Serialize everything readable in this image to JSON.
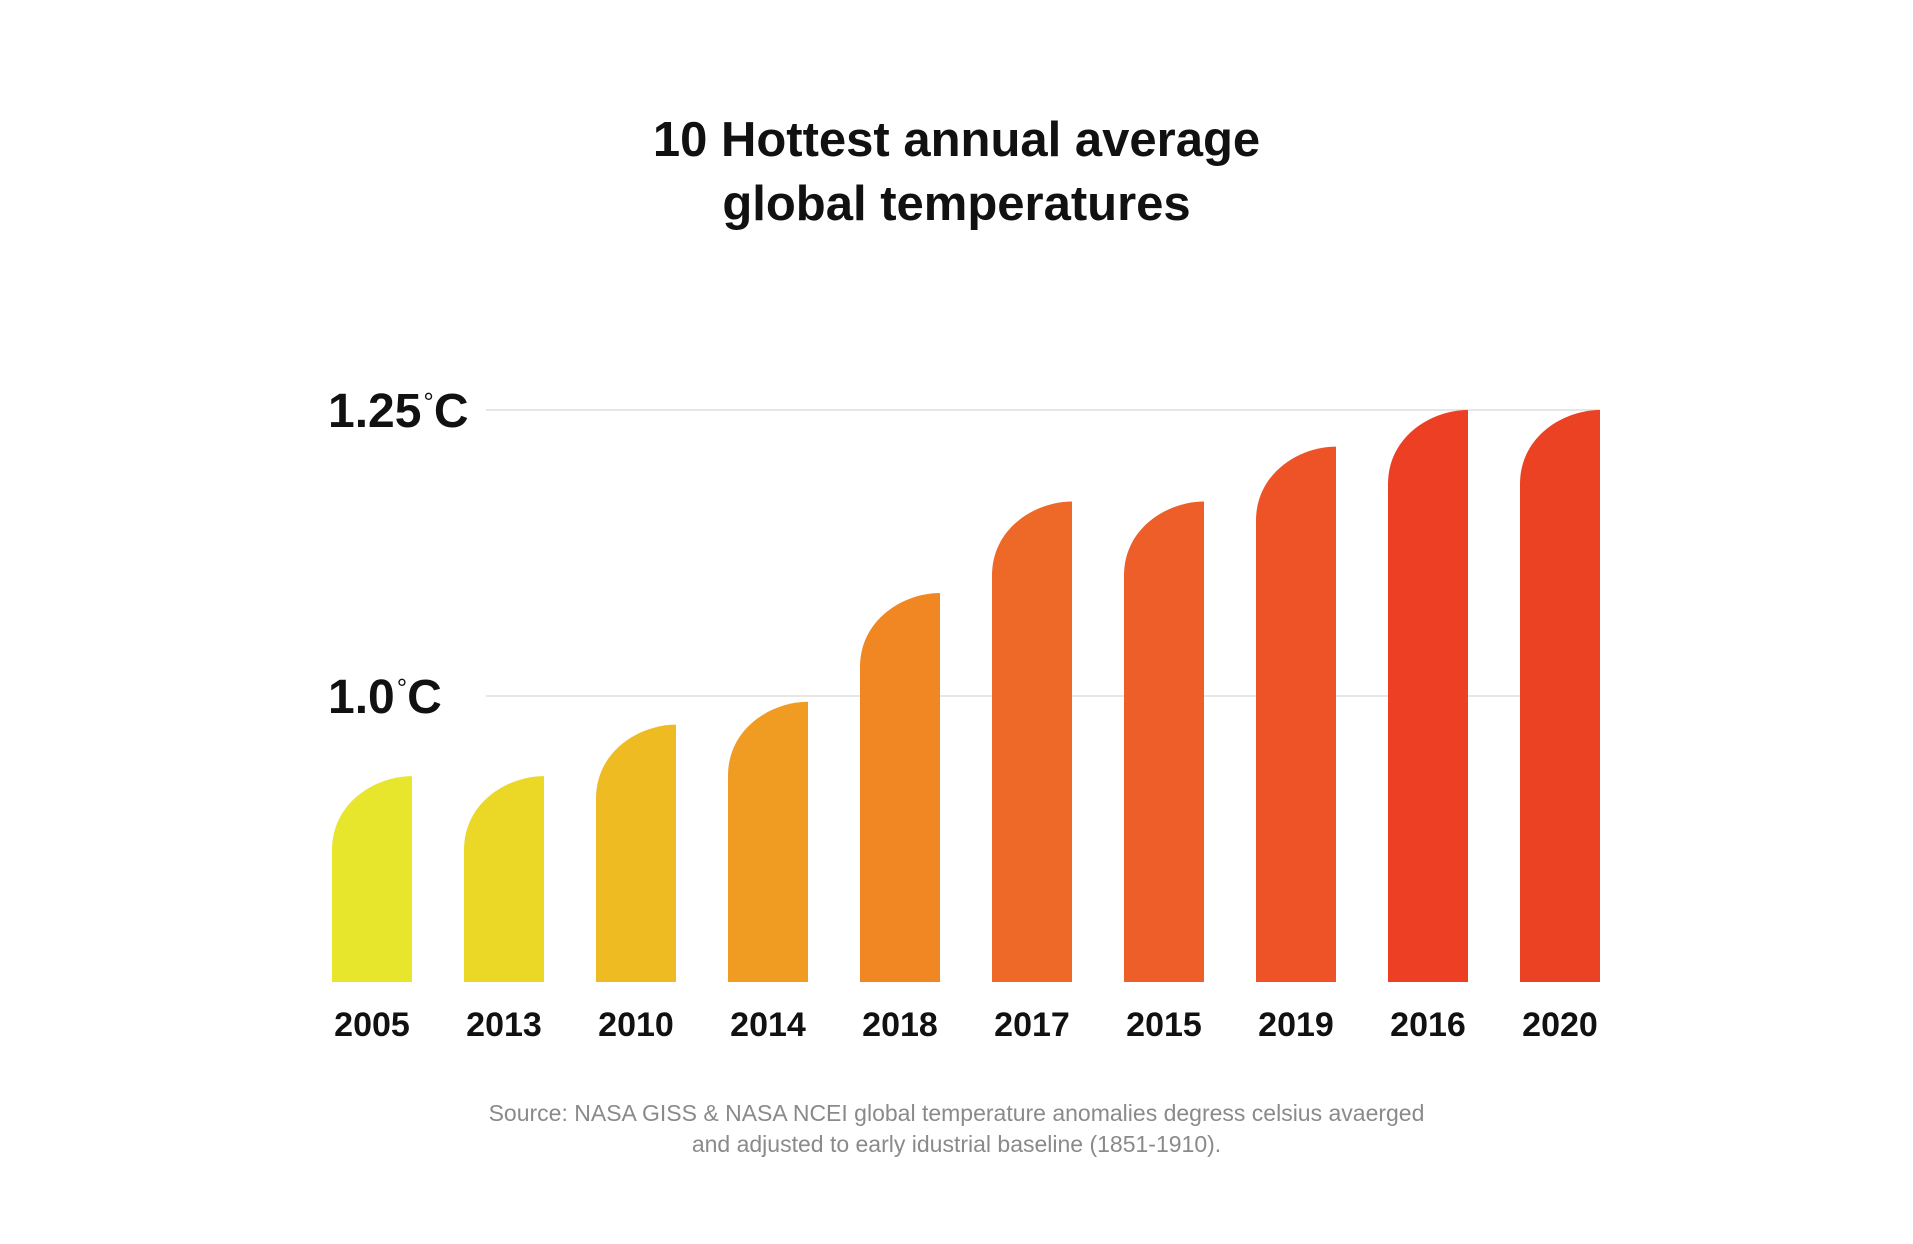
{
  "title": {
    "line1": "10 Hottest annual average",
    "line2": "global temperatures"
  },
  "source": {
    "line1": "Source: NASA GISS & NASA NCEI global temperature anomalies degress celsius avaerged",
    "line2": "and adjusted to early idustrial baseline (1851-1910)."
  },
  "chart_data": {
    "type": "bar",
    "title": "10 Hottest annual average global temperatures",
    "categories": [
      "2005",
      "2013",
      "2010",
      "2014",
      "2018",
      "2017",
      "2015",
      "2019",
      "2016",
      "2020"
    ],
    "values": [
      0.93,
      0.93,
      0.975,
      0.995,
      1.09,
      1.17,
      1.17,
      1.218,
      1.25,
      1.25
    ],
    "colors": [
      "#E8E62C",
      "#EAD726",
      "#EEBB22",
      "#F09C22",
      "#F08722",
      "#EE6828",
      "#EE5E29",
      "#EE5328",
      "#EC3F24",
      "#EC4224"
    ],
    "ylim": [
      0.75,
      1.25
    ],
    "yticks": [
      {
        "value": 1.25,
        "label": "1.25",
        "unit": "°C"
      },
      {
        "value": 1.0,
        "label": "1.0",
        "unit": "°C"
      }
    ],
    "grid": true,
    "gridline_color": "#dddddd",
    "xlabel": "",
    "ylabel": ""
  }
}
